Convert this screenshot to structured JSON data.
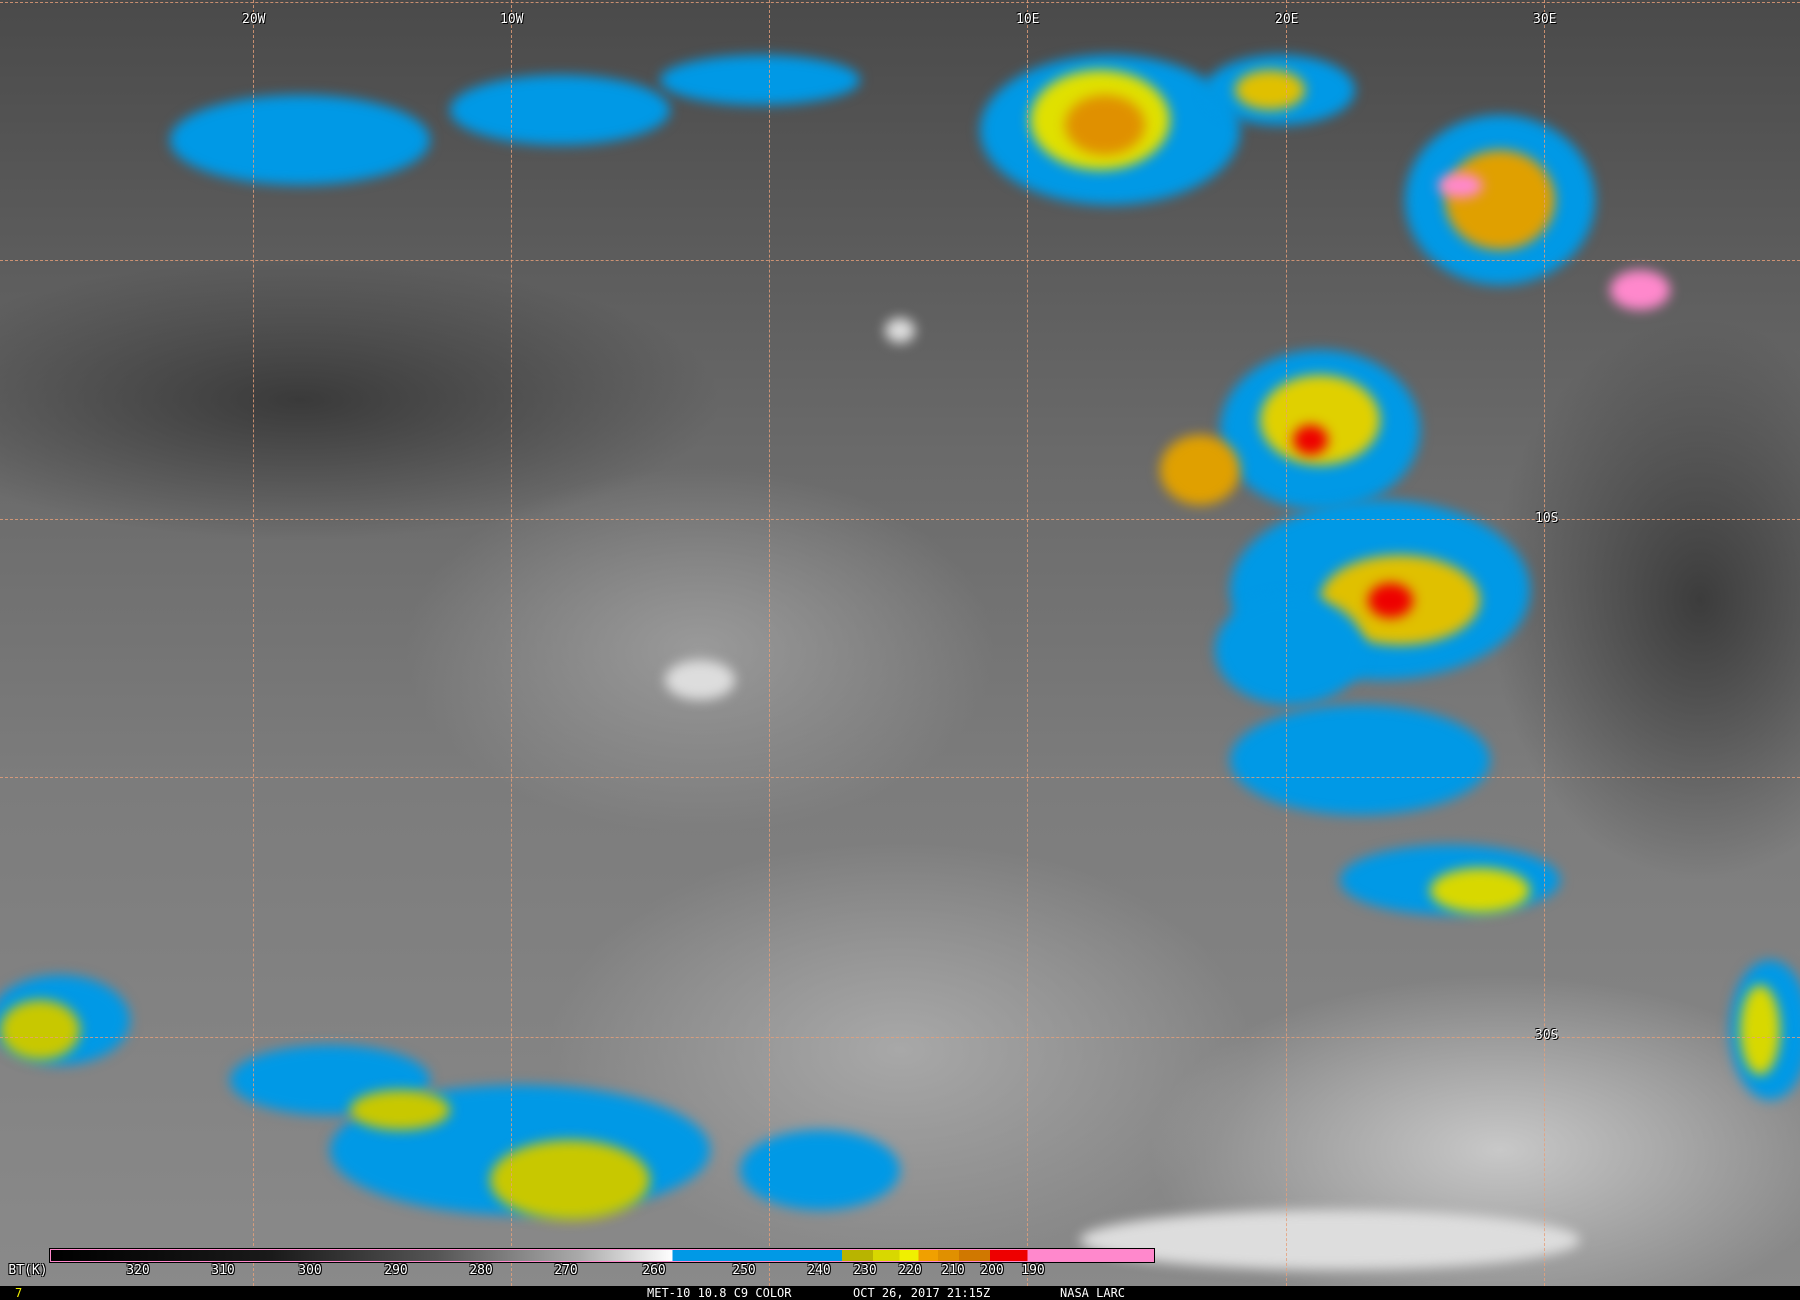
{
  "map": {
    "lon_labels": [
      "20W",
      "10W",
      "10E",
      "20E",
      "30E"
    ],
    "lat_labels": [
      "10S",
      "30S"
    ],
    "grid_color": "#e8a07a"
  },
  "colorbar": {
    "title": "BT(K)",
    "ticks": [
      "320",
      "310",
      "300",
      "290",
      "280",
      "270",
      "260",
      "250",
      "240",
      "230",
      "220",
      "210",
      "200",
      "190"
    ],
    "colors": {
      "cold_blue": "#0099e6",
      "olive": "#b8b400",
      "yellow": "#f0f000",
      "orange": "#f0a000",
      "dark_orange": "#d07800",
      "red": "#ee0000",
      "pink": "#ff88cc"
    }
  },
  "footer": {
    "frame_number": "7",
    "product": "MET-10 10.8 C9 COLOR",
    "timestamp": "OCT 26, 2017 21:15Z",
    "credit": "NASA LARC"
  }
}
